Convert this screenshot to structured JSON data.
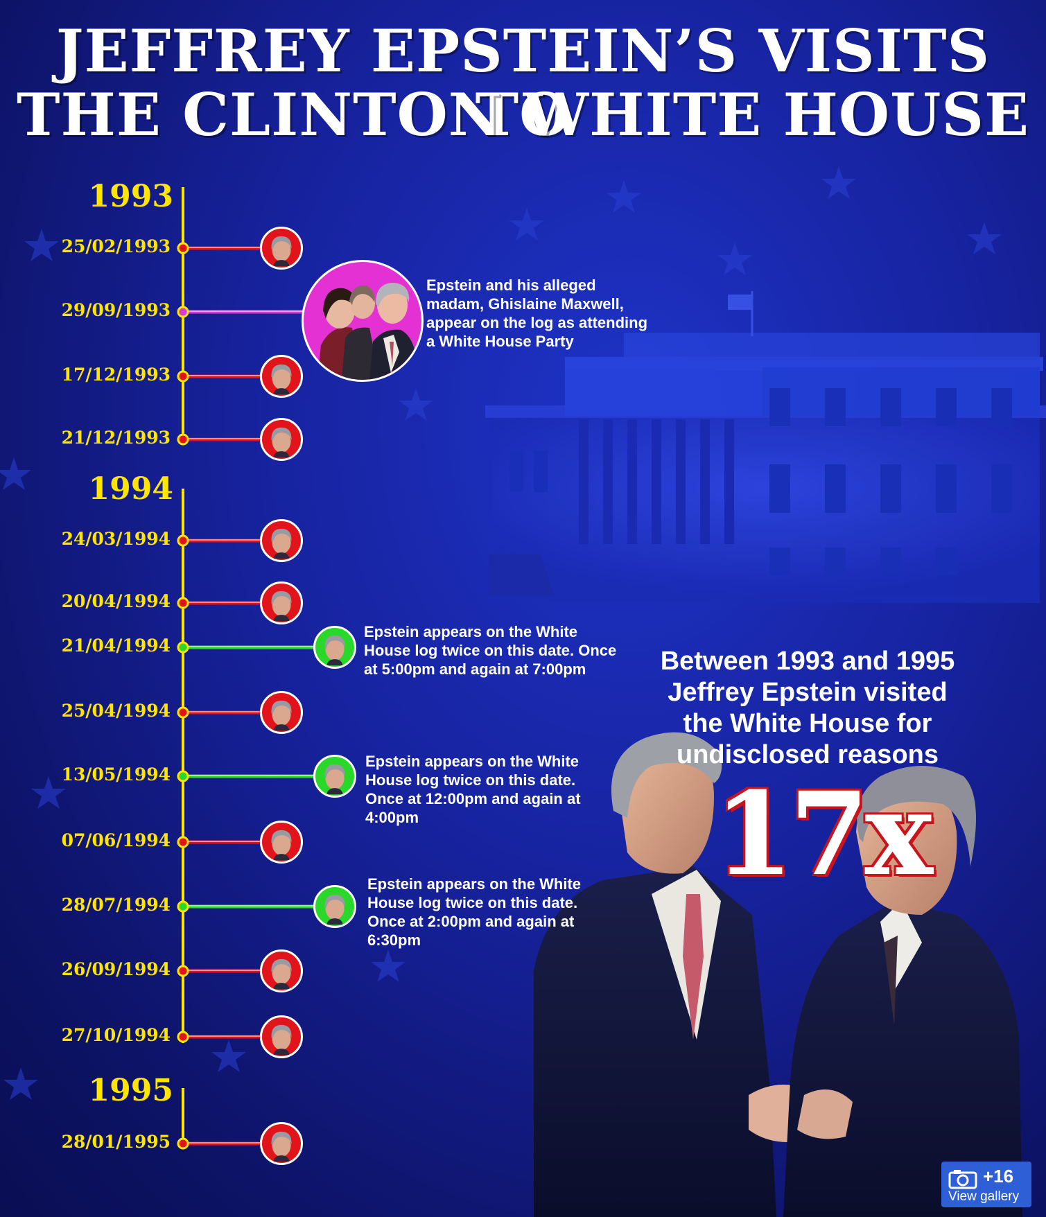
{
  "title_lines": [
    "JEFFREY EPSTEIN’S VISITS TO",
    "THE CLINTON WHITE HOUSE"
  ],
  "years": [
    "1993",
    "1994",
    "1995"
  ],
  "visits": [
    {
      "date": "25/02/1993",
      "kind": "single"
    },
    {
      "date": "29/09/1993",
      "kind": "party"
    },
    {
      "date": "17/12/1993",
      "kind": "single"
    },
    {
      "date": "21/12/1993",
      "kind": "single"
    },
    {
      "date": "24/03/1994",
      "kind": "single"
    },
    {
      "date": "20/04/1994",
      "kind": "single"
    },
    {
      "date": "21/04/1994",
      "kind": "twice"
    },
    {
      "date": "25/04/1994",
      "kind": "single"
    },
    {
      "date": "13/05/1994",
      "kind": "twice"
    },
    {
      "date": "07/06/1994",
      "kind": "single"
    },
    {
      "date": "28/07/1994",
      "kind": "twice"
    },
    {
      "date": "26/09/1994",
      "kind": "single"
    },
    {
      "date": "27/10/1994",
      "kind": "single"
    },
    {
      "date": "28/01/1995",
      "kind": "single"
    }
  ],
  "notes": {
    "party": "Epstein and his alleged madam, Ghislaine Maxwell, appear on the log as attending a White House Party",
    "apr21": "Epstein appears on the White House log twice on this date. Once at 5:00pm and again at 7:00pm",
    "may13": "Epstein appears on the White House log twice on this date. Once at 12:00pm and again at 4:00pm",
    "jul28": "Epstein appears on the White House log twice on this date. Once at 2:00pm and again at 6:30pm"
  },
  "summary": "Between 1993 and 1995 Jeffrey Epstein visited the White House for undisclosed reasons",
  "visit_count": "17x",
  "gallery": {
    "count": "+16",
    "label": "View gallery"
  },
  "colors": {
    "timeline": "#ffe500",
    "single_connector": "#e2141b",
    "party_connector": "#d63bd6",
    "twice_connector": "#2ad82a",
    "count_outline": "#c8141c",
    "gallery_button": "#2f5fd6"
  }
}
